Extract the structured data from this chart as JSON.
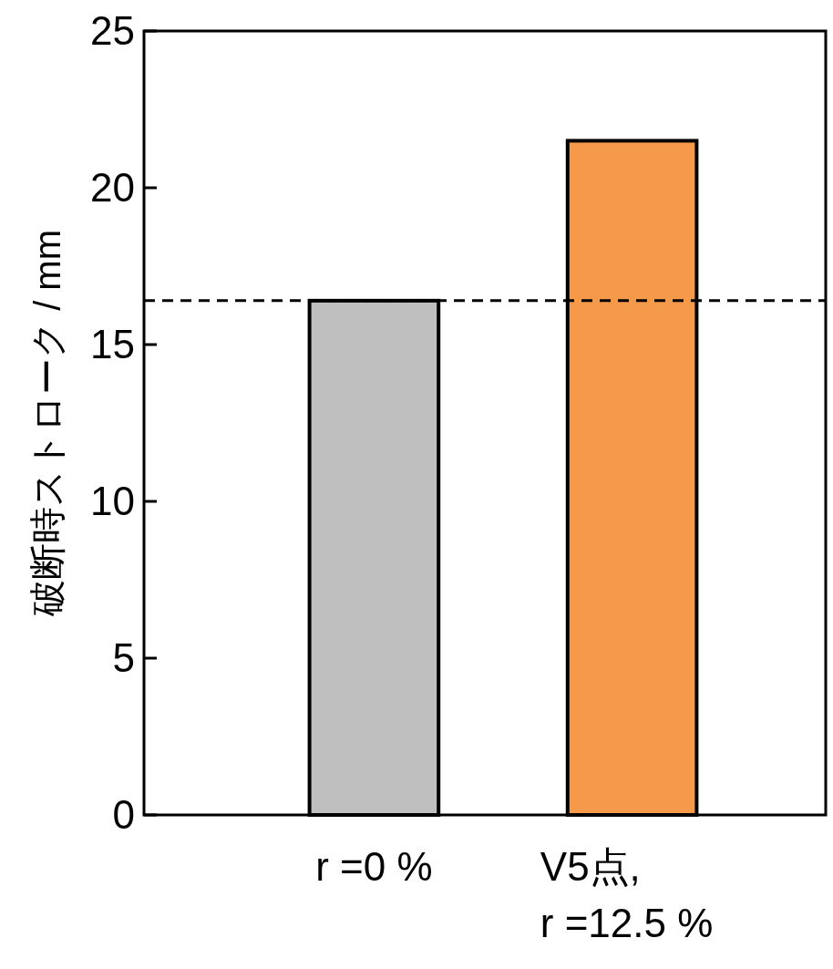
{
  "chart_data": {
    "type": "bar",
    "ylabel": "破断時ストローク / mm",
    "categories": [
      "r =0 %",
      "V5点,\nr =12.5 %"
    ],
    "values": [
      16.4,
      21.5
    ],
    "colors": [
      "#bfbfbf",
      "#f5994a"
    ],
    "ylim": [
      0,
      25
    ],
    "yticks": [
      0,
      5,
      10,
      15,
      20,
      25
    ],
    "grid": false,
    "ref_lines": [
      {
        "axis": "y",
        "value": 16.4,
        "line_style": "dashed",
        "color": "#000000"
      }
    ]
  }
}
